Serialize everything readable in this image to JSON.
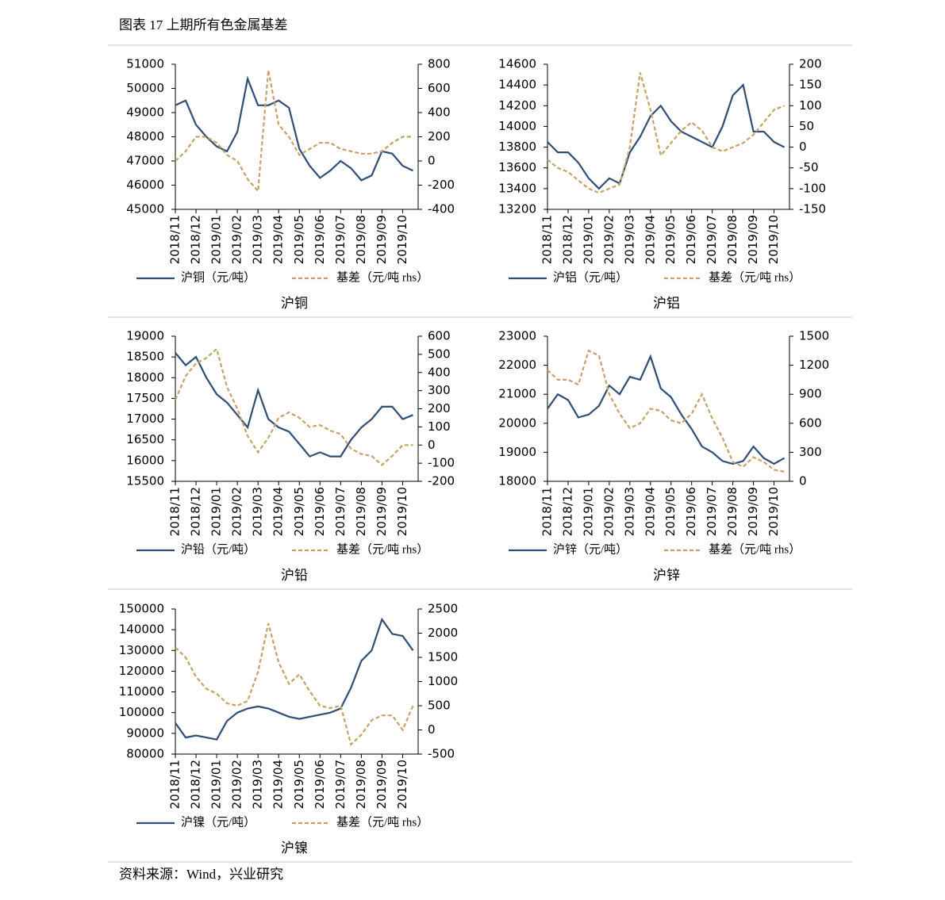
{
  "title": "图表 17  上期所有色金属基差",
  "source": "资料来源：Wind，兴业研究",
  "chart_data": [
    {
      "type": "line",
      "title": "沪铜",
      "categories": [
        "2018/11",
        null,
        "2018/12",
        null,
        "2019/01",
        null,
        "2019/02",
        null,
        "2019/03",
        null,
        "2019/04",
        null,
        "2019/05",
        null,
        "2019/06",
        null,
        "2019/07",
        null,
        "2019/08",
        null,
        "2019/09",
        null,
        "2019/10",
        null
      ],
      "series": [
        {
          "name": "沪铜（元/吨）",
          "color": "#2e4e75",
          "axis": "y",
          "values": [
            49300,
            49500,
            48500,
            48000,
            47600,
            47400,
            48200,
            50400,
            49300,
            49300,
            49500,
            49200,
            47500,
            46800,
            46300,
            46600,
            47000,
            46700,
            46200,
            46400,
            47400,
            47300,
            46800,
            46600
          ]
        },
        {
          "name": "基差（元/吨 rhs）",
          "color": "#c8a165",
          "axis": "y2",
          "dashed": true,
          "values": [
            0,
            80,
            200,
            200,
            150,
            50,
            0,
            -150,
            -250,
            750,
            300,
            200,
            50,
            100,
            150,
            150,
            100,
            80,
            60,
            60,
            80,
            150,
            200,
            200
          ]
        }
      ],
      "ylim": [
        45000,
        51000
      ],
      "yticks": [
        45000,
        46000,
        47000,
        48000,
        49000,
        50000,
        51000
      ],
      "y2lim": [
        -400,
        800
      ],
      "y2ticks": [
        -400,
        -200,
        0,
        200,
        400,
        600,
        800
      ]
    },
    {
      "type": "line",
      "title": "沪铝",
      "categories": [
        "2018/11",
        null,
        "2018/12",
        null,
        "2019/01",
        null,
        "2019/02",
        null,
        "2019/03",
        null,
        "2019/04",
        null,
        "2019/05",
        null,
        "2019/06",
        null,
        "2019/07",
        null,
        "2019/08",
        null,
        "2019/09",
        null,
        "2019/10",
        null
      ],
      "series": [
        {
          "name": "沪铝（元/吨）",
          "color": "#2e4e75",
          "axis": "y",
          "values": [
            13850,
            13750,
            13750,
            13650,
            13500,
            13400,
            13500,
            13450,
            13750,
            13900,
            14100,
            14200,
            14050,
            13950,
            13900,
            13850,
            13800,
            14000,
            14300,
            14400,
            13950,
            13950,
            13850,
            13800
          ]
        },
        {
          "name": "基差（元/吨 rhs）",
          "color": "#c8a165",
          "axis": "y2",
          "dashed": true,
          "values": [
            -30,
            -50,
            -60,
            -80,
            -100,
            -110,
            -100,
            -90,
            0,
            180,
            90,
            -20,
            10,
            40,
            60,
            40,
            0,
            -10,
            0,
            10,
            30,
            60,
            90,
            100
          ]
        }
      ],
      "ylim": [
        13200,
        14600
      ],
      "yticks": [
        13200,
        13400,
        13600,
        13800,
        14000,
        14200,
        14400,
        14600
      ],
      "y2lim": [
        -150,
        200
      ],
      "y2ticks": [
        -150,
        -100,
        -50,
        0,
        50,
        100,
        150,
        200
      ]
    },
    {
      "type": "line",
      "title": "沪铅",
      "categories": [
        "2018/11",
        null,
        "2018/12",
        null,
        "2019/01",
        null,
        "2019/02",
        null,
        "2019/03",
        null,
        "2019/04",
        null,
        "2019/05",
        null,
        "2019/06",
        null,
        "2019/07",
        null,
        "2019/08",
        null,
        "2019/09",
        null,
        "2019/10",
        null
      ],
      "series": [
        {
          "name": "沪铅（元/吨）",
          "color": "#2e4e75",
          "axis": "y",
          "values": [
            18600,
            18300,
            18500,
            18000,
            17600,
            17400,
            17100,
            16800,
            17700,
            17000,
            16800,
            16700,
            16400,
            16100,
            16200,
            16100,
            16100,
            16500,
            16800,
            17000,
            17300,
            17300,
            17000,
            17100
          ]
        },
        {
          "name": "基差（元/吨 rhs）",
          "color": "#c8a165",
          "axis": "y2",
          "dashed": true,
          "values": [
            250,
            380,
            450,
            480,
            530,
            320,
            200,
            50,
            -40,
            40,
            150,
            180,
            150,
            100,
            110,
            80,
            60,
            -20,
            -50,
            -60,
            -110,
            -60,
            0,
            0
          ]
        }
      ],
      "ylim": [
        15500,
        19000
      ],
      "yticks": [
        15500,
        16000,
        16500,
        17000,
        17500,
        18000,
        18500,
        19000
      ],
      "y2lim": [
        -200,
        600
      ],
      "y2ticks": [
        -200,
        -100,
        0,
        100,
        200,
        300,
        400,
        500,
        600
      ]
    },
    {
      "type": "line",
      "title": "沪锌",
      "categories": [
        "2018/11",
        null,
        "2018/12",
        null,
        "2019/01",
        null,
        "2019/02",
        null,
        "2019/03",
        null,
        "2019/04",
        null,
        "2019/05",
        null,
        "2019/06",
        null,
        "2019/07",
        null,
        "2019/08",
        null,
        "2019/09",
        null,
        "2019/10",
        null
      ],
      "series": [
        {
          "name": "沪锌（元/吨）",
          "color": "#2e4e75",
          "axis": "y",
          "values": [
            20500,
            21000,
            20800,
            20200,
            20300,
            20600,
            21300,
            21000,
            21600,
            21500,
            22300,
            21200,
            20900,
            20300,
            19800,
            19200,
            19000,
            18700,
            18600,
            18700,
            19200,
            18800,
            18600,
            18800
          ]
        },
        {
          "name": "基差（元/吨 rhs）",
          "color": "#c8a165",
          "axis": "y2",
          "dashed": true,
          "values": [
            1150,
            1050,
            1050,
            1000,
            1350,
            1300,
            900,
            700,
            550,
            600,
            750,
            730,
            630,
            600,
            700,
            900,
            650,
            450,
            200,
            150,
            250,
            200,
            120,
            100
          ]
        }
      ],
      "ylim": [
        18000,
        23000
      ],
      "yticks": [
        18000,
        19000,
        20000,
        21000,
        22000,
        23000
      ],
      "y2lim": [
        0,
        1500
      ],
      "y2ticks": [
        0,
        300,
        600,
        900,
        1200,
        1500
      ]
    },
    {
      "type": "line",
      "title": "沪镍",
      "categories": [
        "2018/11",
        null,
        "2018/12",
        null,
        "2019/01",
        null,
        "2019/02",
        null,
        "2019/03",
        null,
        "2019/04",
        null,
        "2019/05",
        null,
        "2019/06",
        null,
        "2019/07",
        null,
        "2019/08",
        null,
        "2019/09",
        null,
        "2019/10",
        null
      ],
      "series": [
        {
          "name": "沪镍（元/吨）",
          "color": "#2e4e75",
          "axis": "y",
          "values": [
            95000,
            88000,
            89000,
            88000,
            87000,
            96000,
            100000,
            102000,
            103000,
            102000,
            100000,
            98000,
            97000,
            98000,
            99000,
            100000,
            102000,
            112000,
            125000,
            130000,
            145000,
            138000,
            137000,
            130000
          ]
        },
        {
          "name": "基差（元/吨 rhs）",
          "color": "#c8a165",
          "axis": "y2",
          "dashed": true,
          "values": [
            1700,
            1500,
            1100,
            850,
            750,
            550,
            500,
            600,
            1200,
            2200,
            1400,
            950,
            1150,
            800,
            500,
            450,
            500,
            -300,
            -100,
            200,
            300,
            300,
            0,
            500
          ]
        }
      ],
      "ylim": [
        80000,
        150000
      ],
      "yticks": [
        80000,
        90000,
        100000,
        110000,
        120000,
        130000,
        140000,
        150000
      ],
      "y2lim": [
        -500,
        2500
      ],
      "y2ticks": [
        -500,
        0,
        500,
        1000,
        1500,
        2000,
        2500
      ]
    }
  ]
}
